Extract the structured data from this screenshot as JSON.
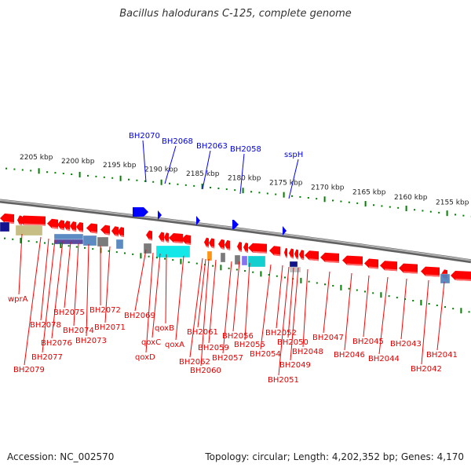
{
  "title": "Bacillus halodurans C-125, complete genome",
  "footer": {
    "accession": "Accession: NC_002570",
    "summary": "Topology: circular; Length: 4,202,352 bp; Genes: 4,170"
  },
  "colors": {
    "forward_gene": "#0000ff",
    "reverse_gene": "#ff0000",
    "ruler_tick": "#008000",
    "backbone": "#808080"
  },
  "ruler_labels": [
    "2205 kbp",
    "2200 kbp",
    "2195 kbp",
    "2190 kbp",
    "2185 kbp",
    "2180 kbp",
    "2175 kbp",
    "2170 kbp",
    "2165 kbp",
    "2160 kbp",
    "2155 kbp"
  ],
  "forward_labels": [
    "BH2070",
    "BH2068",
    "BH2063",
    "BH2058",
    "sspH"
  ],
  "reverse_labels": [
    "wprA",
    "BH2079",
    "BH2078",
    "BH2077",
    "BH2076",
    "BH2075",
    "BH2074",
    "BH2073",
    "BH2072",
    "BH2071",
    "BH2069",
    "qoxD",
    "qoxC",
    "qoxB",
    "qoxA",
    "BH2062",
    "BH2061",
    "BH2060",
    "BH2059",
    "BH2057",
    "BH2056",
    "BH2055",
    "BH2054",
    "BH2052",
    "BH2051",
    "BH2050",
    "BH2049",
    "BH2048",
    "BH2047",
    "BH2046",
    "BH2045",
    "BH2044",
    "BH2043",
    "BH2042",
    "BH2041"
  ]
}
